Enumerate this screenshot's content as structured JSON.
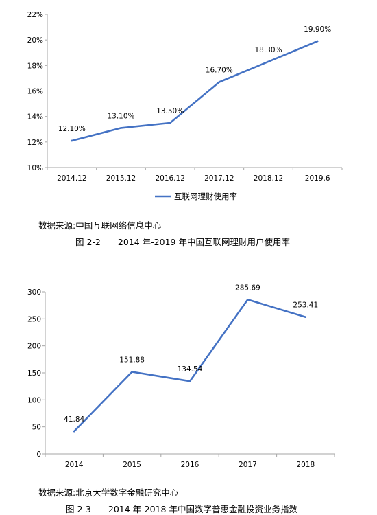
{
  "chart_data": [
    {
      "type": "line",
      "categories": [
        "2014.12",
        "2015.12",
        "2016.12",
        "2017.12",
        "2018.12",
        "2019.6"
      ],
      "series": [
        {
          "name": "互联网理财使用率",
          "values": [
            12.1,
            13.1,
            13.5,
            16.7,
            18.3,
            19.9
          ]
        }
      ],
      "data_labels": [
        "12.10%",
        "13.10%",
        "13.50%",
        "16.70%",
        "18.30%",
        "19.90%"
      ],
      "y_ticks": [
        "10%",
        "12%",
        "14%",
        "16%",
        "18%",
        "20%",
        "22%"
      ],
      "ylim": [
        10,
        22
      ],
      "color": "#4472C4",
      "grid": false,
      "legend_position": "bottom"
    },
    {
      "type": "line",
      "categories": [
        "2014",
        "2015",
        "2016",
        "2017",
        "2018"
      ],
      "series": [
        {
          "values": [
            41.84,
            151.88,
            134.54,
            285.69,
            253.41
          ]
        }
      ],
      "data_labels": [
        "41.84",
        "151.88",
        "134.54",
        "285.69",
        "253.41"
      ],
      "y_ticks": [
        "0",
        "50",
        "100",
        "150",
        "200",
        "250",
        "300"
      ],
      "ylim": [
        0,
        300
      ],
      "color": "#4472C4",
      "grid": false
    }
  ],
  "captions": {
    "source1": "数据来源:中国互联网络信息中心",
    "figure1": "图 2-2　　2014 年-2019 年中国互联网理财用户使用率",
    "source2": "数据来源:北京大学数字金融研究中心",
    "figure2": "图 2-3　　2014 年-2018 年中国数字普惠金融投资业务指数"
  }
}
